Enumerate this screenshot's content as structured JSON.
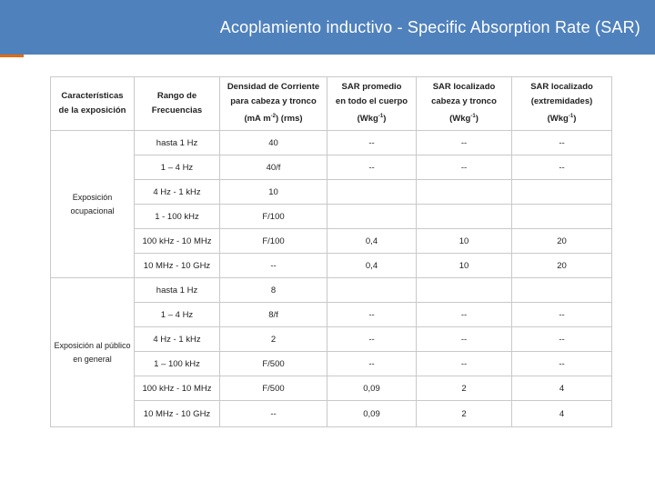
{
  "slide": {
    "title": "Acoplamiento inductivo - Specific Absorption Rate (SAR)",
    "colors": {
      "header_bg": "#4f81bd",
      "accent": "#e36c09"
    }
  },
  "table": {
    "headers": [
      {
        "line1": "Características",
        "line2": "de la exposición",
        "sup": "",
        "tail": ""
      },
      {
        "line1": "Rango de",
        "line2": "Frecuencias",
        "sup": "",
        "tail": ""
      },
      {
        "line1": "Densidad de Corriente",
        "line2": "para cabeza y tronco",
        "line3": "(mA m",
        "sup": "-2",
        "tail": ") (rms)"
      },
      {
        "line1": "SAR promedio",
        "line2": "en todo el cuerpo",
        "line3": "(Wkg",
        "sup": "-1",
        "tail": ")"
      },
      {
        "line1": "SAR localizado",
        "line2": "cabeza y tronco",
        "line3": "(Wkg",
        "sup": "-1",
        "tail": ")"
      },
      {
        "line1": "SAR localizado",
        "line2": "(extremidades)",
        "line3": "(Wkg",
        "sup": "-1",
        "tail": ")"
      }
    ],
    "groups": [
      {
        "label_line1": "Exposición",
        "label_line2": "ocupacional",
        "rows": [
          [
            "hasta 1 Hz",
            "40",
            "--",
            "--",
            "--"
          ],
          [
            "1 – 4 Hz",
            "40/f",
            "--",
            "--",
            "--"
          ],
          [
            "4 Hz - 1 kHz",
            "10",
            "",
            "",
            ""
          ],
          [
            "1 - 100 kHz",
            "F/100",
            "",
            "",
            ""
          ],
          [
            "100 kHz - 10 MHz",
            "F/100",
            "0,4",
            "10",
            "20"
          ],
          [
            "10 MHz - 10 GHz",
            "--",
            "0,4",
            "10",
            "20"
          ]
        ]
      },
      {
        "label_line1": "Exposición al público",
        "label_line2": "en general",
        "rows": [
          [
            "hasta 1 Hz",
            "8",
            "",
            "",
            ""
          ],
          [
            "1 – 4 Hz",
            "8/f",
            "--",
            "--",
            "--"
          ],
          [
            "4 Hz - 1 kHz",
            "2",
            "--",
            "--",
            "--"
          ],
          [
            "1 – 100 kHz",
            "F/500",
            "--",
            "--",
            "--"
          ],
          [
            "100 kHz - 10 MHz",
            "F/500",
            "0,09",
            "2",
            "4"
          ],
          [
            "10 MHz - 10 GHz",
            "--",
            "0,09",
            "2",
            "4"
          ]
        ]
      }
    ]
  }
}
